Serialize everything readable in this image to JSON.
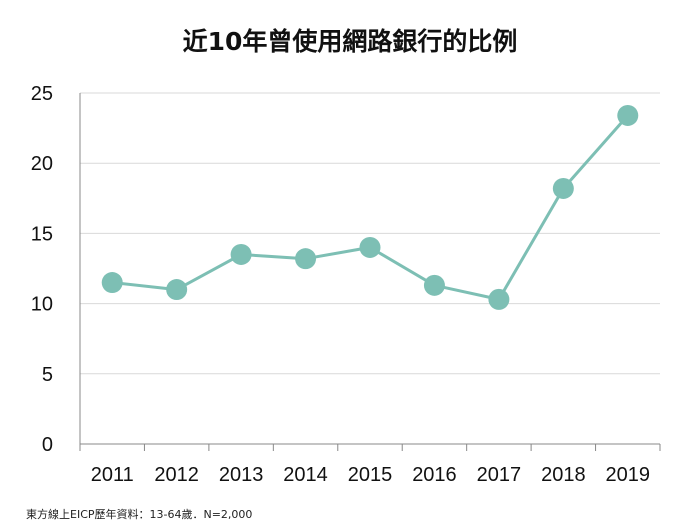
{
  "chart_data": {
    "type": "line",
    "title": "近10年曾使用網路銀行的比例",
    "xlabel": "",
    "ylabel": "",
    "categories": [
      "2011",
      "2012",
      "2013",
      "2014",
      "2015",
      "2016",
      "2017",
      "2018",
      "2019"
    ],
    "series": [
      {
        "values": [
          11.5,
          11.0,
          13.5,
          13.2,
          14.0,
          11.3,
          10.3,
          18.2,
          23.4
        ]
      }
    ],
    "ylim": [
      0,
      25
    ],
    "yticks": [
      "0",
      "5",
      "10",
      "15",
      "20",
      "25"
    ],
    "grid": true,
    "legend": "none",
    "series_color": "#7dbfb4",
    "grid_color": "#d9d9d9",
    "axis_color": "#888888"
  },
  "footnote": "東方線上EICP歷年資料：13-64歲．N=2,000"
}
